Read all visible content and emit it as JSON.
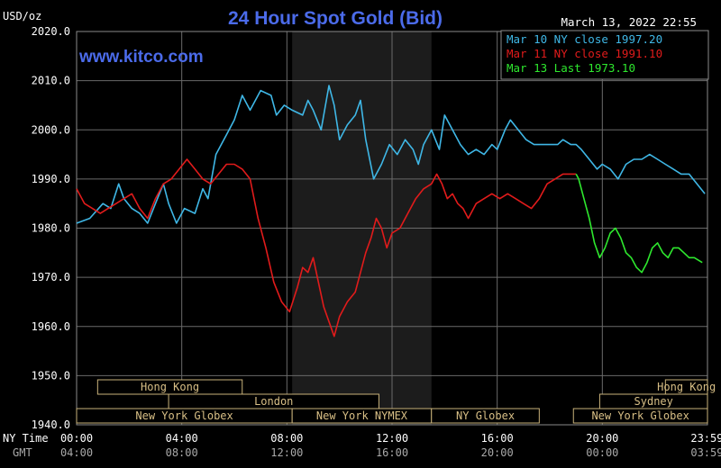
{
  "chart_data": {
    "type": "line",
    "title": "24 Hour Spot Gold (Bid)",
    "ylabel": "USD/oz",
    "timestamp": "March 13, 2022 22:55",
    "watermark": "www.kitco.com",
    "ylim": [
      1940,
      2020
    ],
    "yticks": [
      "2020.0",
      "2010.0",
      "2000.0",
      "1990.0",
      "1980.0",
      "1970.0",
      "1960.0",
      "1950.0",
      "1940.0"
    ],
    "xlim": [
      0,
      24
    ],
    "xticks": [
      {
        "x": 0,
        "ny": "00:00",
        "gmt": "04:00"
      },
      {
        "x": 4,
        "ny": "04:00",
        "gmt": "08:00"
      },
      {
        "x": 8,
        "ny": "08:00",
        "gmt": "12:00"
      },
      {
        "x": 12,
        "ny": "12:00",
        "gmt": "16:00"
      },
      {
        "x": 16,
        "ny": "16:00",
        "gmt": "20:00"
      },
      {
        "x": 20,
        "ny": "20:00",
        "gmt": "00:00"
      },
      {
        "x": 23.98,
        "ny": "23:59",
        "gmt": "03:59"
      }
    ],
    "x_row_labels": {
      "ny": "NY Time",
      "gmt": "GMT"
    },
    "shaded_region": [
      8.2,
      13.5
    ],
    "grid": true,
    "legend_position": "top-right",
    "series": [
      {
        "name": "Mar 10 NY close 1997.20",
        "color": "#3fb7e6",
        "points": [
          [
            0,
            1981
          ],
          [
            0.5,
            1982
          ],
          [
            1.0,
            1985
          ],
          [
            1.3,
            1984
          ],
          [
            1.6,
            1989
          ],
          [
            1.8,
            1986
          ],
          [
            2.1,
            1984
          ],
          [
            2.4,
            1983
          ],
          [
            2.7,
            1981
          ],
          [
            3.0,
            1985
          ],
          [
            3.3,
            1989
          ],
          [
            3.5,
            1985
          ],
          [
            3.8,
            1981
          ],
          [
            4.1,
            1984
          ],
          [
            4.5,
            1983
          ],
          [
            4.8,
            1988
          ],
          [
            5.0,
            1986
          ],
          [
            5.3,
            1995
          ],
          [
            5.7,
            1999
          ],
          [
            6.0,
            2002
          ],
          [
            6.3,
            2007
          ],
          [
            6.6,
            2004
          ],
          [
            7.0,
            2008
          ],
          [
            7.4,
            2007
          ],
          [
            7.6,
            2003
          ],
          [
            7.9,
            2005
          ],
          [
            8.2,
            2004
          ],
          [
            8.6,
            2003
          ],
          [
            8.8,
            2006
          ],
          [
            9.0,
            2004
          ],
          [
            9.3,
            2000
          ],
          [
            9.6,
            2009
          ],
          [
            9.8,
            2005
          ],
          [
            10.0,
            1998
          ],
          [
            10.3,
            2001
          ],
          [
            10.6,
            2003
          ],
          [
            10.8,
            2006
          ],
          [
            11.0,
            1998
          ],
          [
            11.3,
            1990
          ],
          [
            11.6,
            1993
          ],
          [
            11.9,
            1997
          ],
          [
            12.2,
            1995
          ],
          [
            12.5,
            1998
          ],
          [
            12.8,
            1996
          ],
          [
            13.0,
            1993
          ],
          [
            13.2,
            1997
          ],
          [
            13.5,
            2000
          ],
          [
            13.8,
            1996
          ],
          [
            14.0,
            2003
          ],
          [
            14.3,
            2000
          ],
          [
            14.6,
            1997
          ],
          [
            14.9,
            1995
          ],
          [
            15.2,
            1996
          ],
          [
            15.5,
            1995
          ],
          [
            15.8,
            1997
          ],
          [
            16.0,
            1996
          ],
          [
            16.3,
            2000
          ],
          [
            16.5,
            2002
          ],
          [
            16.8,
            2000
          ],
          [
            17.1,
            1998
          ],
          [
            17.4,
            1997
          ],
          [
            17.7,
            1997
          ],
          [
            18.0,
            1997
          ],
          [
            18.3,
            1997
          ],
          [
            18.5,
            1998
          ],
          [
            18.8,
            1997
          ],
          [
            19.0,
            1997
          ],
          [
            19.2,
            1996
          ],
          [
            19.5,
            1994
          ],
          [
            19.8,
            1992
          ],
          [
            20.0,
            1993
          ],
          [
            20.3,
            1992
          ],
          [
            20.6,
            1990
          ],
          [
            20.9,
            1993
          ],
          [
            21.2,
            1994
          ],
          [
            21.5,
            1994
          ],
          [
            21.8,
            1995
          ],
          [
            22.1,
            1994
          ],
          [
            22.4,
            1993
          ],
          [
            22.7,
            1992
          ],
          [
            23.0,
            1991
          ],
          [
            23.3,
            1991
          ],
          [
            23.6,
            1989
          ],
          [
            23.9,
            1987
          ]
        ]
      },
      {
        "name": "Mar 11 NY close 1991.10",
        "color": "#e11b1b",
        "points": [
          [
            0,
            1988
          ],
          [
            0.3,
            1985
          ],
          [
            0.6,
            1984
          ],
          [
            0.9,
            1983
          ],
          [
            1.2,
            1984
          ],
          [
            1.5,
            1985
          ],
          [
            1.8,
            1986
          ],
          [
            2.1,
            1987
          ],
          [
            2.4,
            1984
          ],
          [
            2.7,
            1982
          ],
          [
            3.0,
            1986
          ],
          [
            3.3,
            1989
          ],
          [
            3.6,
            1990
          ],
          [
            3.9,
            1992
          ],
          [
            4.2,
            1994
          ],
          [
            4.5,
            1992
          ],
          [
            4.8,
            1990
          ],
          [
            5.1,
            1989
          ],
          [
            5.4,
            1991
          ],
          [
            5.7,
            1993
          ],
          [
            6.0,
            1993
          ],
          [
            6.3,
            1992
          ],
          [
            6.6,
            1990
          ],
          [
            6.9,
            1982
          ],
          [
            7.2,
            1976
          ],
          [
            7.5,
            1969
          ],
          [
            7.8,
            1965
          ],
          [
            8.1,
            1963
          ],
          [
            8.4,
            1968
          ],
          [
            8.6,
            1972
          ],
          [
            8.8,
            1971
          ],
          [
            9.0,
            1974
          ],
          [
            9.2,
            1969
          ],
          [
            9.4,
            1964
          ],
          [
            9.6,
            1961
          ],
          [
            9.8,
            1958
          ],
          [
            10.0,
            1962
          ],
          [
            10.3,
            1965
          ],
          [
            10.6,
            1967
          ],
          [
            10.8,
            1971
          ],
          [
            11.0,
            1975
          ],
          [
            11.2,
            1978
          ],
          [
            11.4,
            1982
          ],
          [
            11.6,
            1980
          ],
          [
            11.8,
            1976
          ],
          [
            12.0,
            1979
          ],
          [
            12.3,
            1980
          ],
          [
            12.6,
            1983
          ],
          [
            12.9,
            1986
          ],
          [
            13.2,
            1988
          ],
          [
            13.5,
            1989
          ],
          [
            13.7,
            1991
          ],
          [
            13.9,
            1989
          ],
          [
            14.1,
            1986
          ],
          [
            14.3,
            1987
          ],
          [
            14.5,
            1985
          ],
          [
            14.7,
            1984
          ],
          [
            14.9,
            1982
          ],
          [
            15.2,
            1985
          ],
          [
            15.5,
            1986
          ],
          [
            15.8,
            1987
          ],
          [
            16.1,
            1986
          ],
          [
            16.4,
            1987
          ],
          [
            16.7,
            1986
          ],
          [
            17.0,
            1985
          ],
          [
            17.3,
            1984
          ],
          [
            17.6,
            1986
          ],
          [
            17.9,
            1989
          ],
          [
            18.2,
            1990
          ],
          [
            18.5,
            1991
          ],
          [
            18.8,
            1991
          ],
          [
            19.0,
            1991
          ]
        ]
      },
      {
        "name": "Mar 13 Last 1973.10",
        "color": "#2ee82e",
        "points": [
          [
            19.0,
            1991
          ],
          [
            19.1,
            1990
          ],
          [
            19.3,
            1986
          ],
          [
            19.5,
            1982
          ],
          [
            19.7,
            1977
          ],
          [
            19.9,
            1974
          ],
          [
            20.1,
            1976
          ],
          [
            20.3,
            1979
          ],
          [
            20.5,
            1980
          ],
          [
            20.7,
            1978
          ],
          [
            20.9,
            1975
          ],
          [
            21.1,
            1974
          ],
          [
            21.3,
            1972
          ],
          [
            21.5,
            1971
          ],
          [
            21.7,
            1973
          ],
          [
            21.9,
            1976
          ],
          [
            22.1,
            1977
          ],
          [
            22.3,
            1975
          ],
          [
            22.5,
            1974
          ],
          [
            22.7,
            1976
          ],
          [
            22.9,
            1976
          ],
          [
            23.1,
            1975
          ],
          [
            23.3,
            1974
          ],
          [
            23.5,
            1974
          ],
          [
            23.8,
            1973
          ]
        ]
      }
    ],
    "sessions": [
      {
        "label": "Hong Kong",
        "rows": [
          0
        ],
        "start": 0.8,
        "end": 6.3
      },
      {
        "label": "Hong Kong",
        "rows": [
          0
        ],
        "start": 22.4,
        "end": 24
      },
      {
        "label": "London",
        "rows": [
          1
        ],
        "start": 3.5,
        "end": 11.5
      },
      {
        "label": "Sydney",
        "rows": [
          1
        ],
        "start": 19.9,
        "end": 24
      },
      {
        "label": "New York Globex",
        "rows": [
          2
        ],
        "start": 0,
        "end": 8.2
      },
      {
        "label": "New York NYMEX",
        "rows": [
          2
        ],
        "start": 8.2,
        "end": 13.5
      },
      {
        "label": "NY Globex",
        "rows": [
          2
        ],
        "start": 13.5,
        "end": 17.6
      },
      {
        "label": "New York Globex",
        "rows": [
          2
        ],
        "start": 18.9,
        "end": 24
      }
    ]
  }
}
